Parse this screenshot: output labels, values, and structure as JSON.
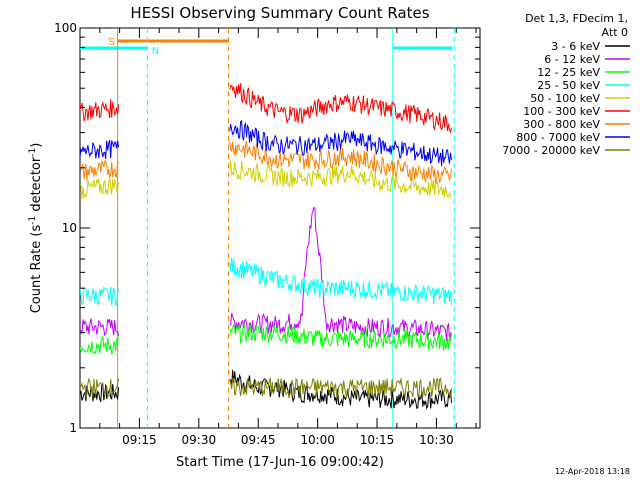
{
  "chart_data": {
    "type": "line",
    "title": "HESSI Observing Summary Count Rates",
    "xlabel": "Start Time (17-Jun-16 09:00:42)",
    "ylabel_prefix": "Count Rate (s",
    "ylabel_sup1": "-1",
    "ylabel_mid": " detector",
    "ylabel_sup2": "-1",
    "ylabel_suffix": ")",
    "yscale": "log",
    "ylim": [
      1,
      100
    ],
    "xlim_minutes": [
      0,
      101
    ],
    "y_tick_labels": [
      {
        "label": "1",
        "value": 1
      },
      {
        "label": "10",
        "value": 10
      },
      {
        "label": "100",
        "value": 100
      }
    ],
    "x_tick_labels": [
      {
        "label": "09:15",
        "minutes": 15
      },
      {
        "label": "09:30",
        "minutes": 30
      },
      {
        "label": "09:45",
        "minutes": 45
      },
      {
        "label": "10:00",
        "minutes": 60
      },
      {
        "label": "10:15",
        "minutes": 75
      },
      {
        "label": "10:30",
        "minutes": 90
      }
    ],
    "legend_header": [
      "Det 1,3, FDecim 1,",
      "Att 0"
    ],
    "legend_placement": "right",
    "flags": [
      {
        "name": "S",
        "color": "#ff7f00",
        "start_minutes": 9.5,
        "end_minutes": 37.5
      },
      {
        "name": "N",
        "color": "#00ffff",
        "start_minutes": 0,
        "end_minutes": 17
      },
      {
        "name": "",
        "color": "#00ffff",
        "start_minutes": 79,
        "end_minutes": 94
      }
    ],
    "vlines": [
      {
        "minutes": 9.5,
        "color": "#ff7f00",
        "style": "solid"
      },
      {
        "minutes": 17,
        "color": "#00ffff",
        "style": "dashed"
      },
      {
        "minutes": 37.5,
        "color": "#ff7f00",
        "style": "dashed"
      },
      {
        "minutes": 79,
        "color": "#00ffff",
        "style": "solid"
      },
      {
        "minutes": 94.5,
        "color": "#00ffff",
        "style": "dashed"
      }
    ],
    "series": [
      {
        "name": "3 - 6 keV",
        "color": "#000000",
        "points": [
          [
            0,
            1.5
          ],
          [
            9,
            1.5
          ],
          [
            38,
            1.8
          ],
          [
            45,
            1.6
          ],
          [
            50,
            1.6
          ],
          [
            55,
            1.5
          ],
          [
            60,
            1.5
          ],
          [
            70,
            1.4
          ],
          [
            80,
            1.4
          ],
          [
            94,
            1.4
          ]
        ]
      },
      {
        "name": "6 - 12 keV",
        "color": "#c000ff",
        "points": [
          [
            0,
            3.2
          ],
          [
            9,
            3.2
          ],
          [
            38,
            3.4
          ],
          [
            50,
            3.3
          ],
          [
            56,
            3.5
          ],
          [
            58,
            9.5
          ],
          [
            59,
            13
          ],
          [
            60,
            8.5
          ],
          [
            62,
            3.4
          ],
          [
            70,
            3.2
          ],
          [
            80,
            3.2
          ],
          [
            94,
            3.0
          ]
        ]
      },
      {
        "name": "12 - 25 keV",
        "color": "#00ff00",
        "points": [
          [
            0,
            2.6
          ],
          [
            9,
            2.6
          ],
          [
            38,
            3.0
          ],
          [
            50,
            3.0
          ],
          [
            60,
            2.8
          ],
          [
            70,
            2.8
          ],
          [
            80,
            2.8
          ],
          [
            94,
            2.7
          ]
        ]
      },
      {
        "name": "25 - 50 keV",
        "color": "#00ffff",
        "points": [
          [
            0,
            4.6
          ],
          [
            9,
            4.6
          ],
          [
            38,
            6.5
          ],
          [
            50,
            5.5
          ],
          [
            60,
            5.0
          ],
          [
            70,
            5.0
          ],
          [
            80,
            4.8
          ],
          [
            94,
            4.6
          ]
        ]
      },
      {
        "name": "50 - 100 keV",
        "color": "#d0d000",
        "points": [
          [
            0,
            15.5
          ],
          [
            9,
            16.5
          ],
          [
            38,
            20
          ],
          [
            50,
            18
          ],
          [
            60,
            18
          ],
          [
            68,
            19
          ],
          [
            75,
            17
          ],
          [
            85,
            16
          ],
          [
            94,
            15.5
          ]
        ]
      },
      {
        "name": "100 - 300 keV",
        "color": "#ff0000",
        "points": [
          [
            0,
            38
          ],
          [
            9,
            40
          ],
          [
            38,
            52
          ],
          [
            45,
            42
          ],
          [
            50,
            38
          ],
          [
            56,
            37
          ],
          [
            63,
            42
          ],
          [
            68,
            43
          ],
          [
            75,
            40
          ],
          [
            85,
            37
          ],
          [
            94,
            33
          ]
        ]
      },
      {
        "name": "300 - 800 keV",
        "color": "#ff7f00",
        "points": [
          [
            0,
            19
          ],
          [
            9,
            20
          ],
          [
            38,
            26
          ],
          [
            50,
            22
          ],
          [
            60,
            22
          ],
          [
            68,
            23
          ],
          [
            75,
            21
          ],
          [
            85,
            19
          ],
          [
            94,
            18
          ]
        ]
      },
      {
        "name": "800 - 7000 keV",
        "color": "#0000ff",
        "points": [
          [
            0,
            24
          ],
          [
            9,
            25
          ],
          [
            38,
            33
          ],
          [
            45,
            28
          ],
          [
            50,
            26
          ],
          [
            60,
            26
          ],
          [
            68,
            28
          ],
          [
            75,
            26
          ],
          [
            85,
            24
          ],
          [
            94,
            22
          ]
        ]
      },
      {
        "name": "7000 - 20000 keV",
        "color": "#7f7f00",
        "points": [
          [
            0,
            1.6
          ],
          [
            9,
            1.6
          ],
          [
            38,
            1.6
          ],
          [
            50,
            1.6
          ],
          [
            60,
            1.6
          ],
          [
            70,
            1.6
          ],
          [
            80,
            1.6
          ],
          [
            94,
            1.6
          ]
        ]
      }
    ]
  },
  "footer": {
    "date_stamp": "12-Apr-2018 13:18"
  }
}
